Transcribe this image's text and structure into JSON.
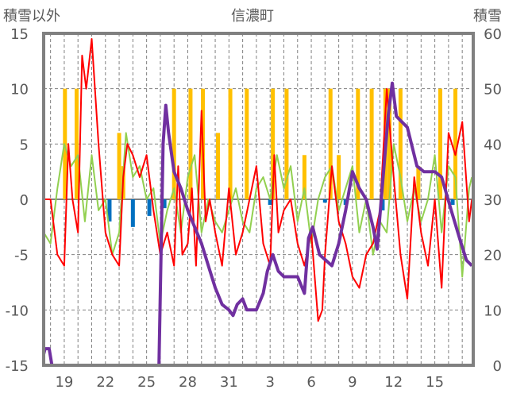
{
  "chart_data": {
    "type": "line",
    "title": "信濃町",
    "ylabel_left": "積雪以外",
    "ylabel_right": "積雪",
    "ylim_left": [
      -15,
      15
    ],
    "ylim_right": [
      0,
      60
    ],
    "yticks_left": [
      "15",
      "10",
      "5",
      "0",
      "-5",
      "-10",
      "-15"
    ],
    "yticks_right": [
      "60",
      "50",
      "40",
      "30",
      "20",
      "10",
      "0"
    ],
    "xlim_day": [
      17.5,
      48.8
    ],
    "xticks": [
      {
        "day": 19,
        "label": "19"
      },
      {
        "day": 22,
        "label": "22"
      },
      {
        "day": 25,
        "label": "25"
      },
      {
        "day": 28,
        "label": "28"
      },
      {
        "day": 31,
        "label": "31"
      },
      {
        "day": 34,
        "label": "3"
      },
      {
        "day": 37,
        "label": "6"
      },
      {
        "day": 40,
        "label": "9"
      },
      {
        "day": 43,
        "label": "12"
      },
      {
        "day": 46,
        "label": "15"
      }
    ],
    "grid": true,
    "colors": {
      "red": "#ff0000",
      "green": "#92d050",
      "yellow": "#ffc000",
      "blue": "#0070c0",
      "purple": "#7030a0",
      "frame": "#808080"
    },
    "series": [
      {
        "name": "snowfall",
        "axis": "left",
        "kind": "bar",
        "color": "#ffc000",
        "points": [
          [
            19.05,
            10
          ],
          [
            19.9,
            10
          ],
          [
            23,
            6
          ],
          [
            23.3,
            3
          ],
          [
            27,
            10
          ],
          [
            28.2,
            10
          ],
          [
            29.1,
            10
          ],
          [
            30.2,
            6
          ],
          [
            31.1,
            10
          ],
          [
            32.3,
            10
          ],
          [
            34.2,
            10
          ],
          [
            35.2,
            10
          ],
          [
            36.5,
            4
          ],
          [
            38.4,
            10
          ],
          [
            39,
            4
          ],
          [
            40.4,
            10
          ],
          [
            41.4,
            10
          ],
          [
            42.4,
            10
          ],
          [
            42.7,
            10
          ],
          [
            43.5,
            10
          ],
          [
            44.8,
            3
          ],
          [
            46.4,
            10
          ],
          [
            47.5,
            10
          ]
        ]
      },
      {
        "name": "negative",
        "axis": "left",
        "kind": "bar",
        "color": "#0070c0",
        "points": [
          [
            22.3,
            -2
          ],
          [
            24,
            -2.5
          ],
          [
            25.2,
            -1.5
          ],
          [
            26.3,
            -0.8
          ],
          [
            34,
            -0.5
          ],
          [
            38,
            -0.3
          ],
          [
            39.5,
            -0.5
          ],
          [
            42.2,
            -1
          ],
          [
            47.3,
            -0.5
          ]
        ]
      },
      {
        "name": "green",
        "axis": "left",
        "kind": "line",
        "color": "#92d050",
        "points": [
          [
            17.5,
            -3
          ],
          [
            18,
            -4
          ],
          [
            18.5,
            1
          ],
          [
            19,
            5
          ],
          [
            19.5,
            3
          ],
          [
            20,
            4
          ],
          [
            20.5,
            -2
          ],
          [
            21,
            4
          ],
          [
            21.5,
            -1
          ],
          [
            22,
            0
          ],
          [
            22.5,
            -5
          ],
          [
            23,
            -3
          ],
          [
            23.5,
            6
          ],
          [
            24,
            2
          ],
          [
            24.5,
            3
          ],
          [
            25,
            0
          ],
          [
            25.5,
            1
          ],
          [
            26,
            -4
          ],
          [
            26.5,
            -1
          ],
          [
            27,
            1
          ],
          [
            27.5,
            -3
          ],
          [
            28,
            2
          ],
          [
            28.5,
            4
          ],
          [
            29,
            -3
          ],
          [
            29.5,
            0
          ],
          [
            30,
            -2
          ],
          [
            30.5,
            -3
          ],
          [
            31,
            -1
          ],
          [
            31.5,
            1
          ],
          [
            32,
            -2
          ],
          [
            32.5,
            -3
          ],
          [
            33,
            1
          ],
          [
            33.5,
            2
          ],
          [
            34,
            0
          ],
          [
            34.5,
            4
          ],
          [
            35,
            1
          ],
          [
            35.5,
            3
          ],
          [
            36,
            -2
          ],
          [
            36.5,
            1
          ],
          [
            37,
            -4
          ],
          [
            37.5,
            0
          ],
          [
            38,
            2
          ],
          [
            38.5,
            3
          ],
          [
            39,
            -1
          ],
          [
            39.5,
            1
          ],
          [
            40,
            3
          ],
          [
            40.5,
            -3
          ],
          [
            41,
            0
          ],
          [
            41.5,
            -5
          ],
          [
            42,
            -2
          ],
          [
            42.5,
            -3
          ],
          [
            43,
            5
          ],
          [
            43.5,
            2
          ],
          [
            44,
            -2
          ],
          [
            44.5,
            1
          ],
          [
            45,
            -2
          ],
          [
            45.5,
            0
          ],
          [
            46,
            4
          ],
          [
            46.5,
            -3
          ],
          [
            47,
            3
          ],
          [
            47.5,
            2
          ],
          [
            48,
            -7
          ],
          [
            48.5,
            1
          ],
          [
            48.7,
            2
          ]
        ]
      },
      {
        "name": "red",
        "axis": "left",
        "kind": "line",
        "color": "#ff0000",
        "points": [
          [
            17.5,
            0
          ],
          [
            18,
            0
          ],
          [
            18.5,
            -5
          ],
          [
            19,
            -6
          ],
          [
            19.3,
            5
          ],
          [
            19.6,
            0
          ],
          [
            20,
            -3
          ],
          [
            20.3,
            13
          ],
          [
            20.6,
            10
          ],
          [
            21,
            14.5
          ],
          [
            21.5,
            5
          ],
          [
            22,
            -3
          ],
          [
            22.5,
            -5
          ],
          [
            23,
            -6
          ],
          [
            23.3,
            2
          ],
          [
            23.6,
            5
          ],
          [
            24,
            4
          ],
          [
            24.5,
            2
          ],
          [
            25,
            4
          ],
          [
            25.5,
            -1
          ],
          [
            26,
            -5
          ],
          [
            26.5,
            -3
          ],
          [
            27,
            -6
          ],
          [
            27.3,
            3
          ],
          [
            27.6,
            -5
          ],
          [
            28,
            -4
          ],
          [
            28.3,
            1
          ],
          [
            28.6,
            -6
          ],
          [
            29,
            8
          ],
          [
            29.3,
            -2
          ],
          [
            29.6,
            0
          ],
          [
            30,
            -3
          ],
          [
            30.5,
            -6
          ],
          [
            31,
            1
          ],
          [
            31.5,
            -5
          ],
          [
            32,
            -3
          ],
          [
            32.5,
            0
          ],
          [
            33,
            3
          ],
          [
            33.5,
            -4
          ],
          [
            34,
            -6
          ],
          [
            34.3,
            4
          ],
          [
            34.6,
            -3
          ],
          [
            35,
            -1
          ],
          [
            35.5,
            0
          ],
          [
            36,
            -4
          ],
          [
            36.5,
            -6
          ],
          [
            37,
            -3
          ],
          [
            37.5,
            -11
          ],
          [
            37.8,
            -10
          ],
          [
            38,
            -5
          ],
          [
            38.5,
            3
          ],
          [
            39,
            -2
          ],
          [
            39.5,
            -4
          ],
          [
            40,
            -7
          ],
          [
            40.5,
            -8
          ],
          [
            41,
            -5
          ],
          [
            41.5,
            -4
          ],
          [
            42,
            -1
          ],
          [
            42.5,
            10
          ],
          [
            43,
            2
          ],
          [
            43.5,
            -5
          ],
          [
            44,
            -9
          ],
          [
            44.5,
            2
          ],
          [
            45,
            -3
          ],
          [
            45.5,
            -6
          ],
          [
            46,
            0
          ],
          [
            46.5,
            -8
          ],
          [
            47,
            6
          ],
          [
            47.5,
            4
          ],
          [
            48,
            7
          ],
          [
            48.5,
            -2
          ],
          [
            48.7,
            0
          ]
        ]
      },
      {
        "name": "snow_depth",
        "axis": "right",
        "kind": "line",
        "color": "#7030a0",
        "points": [
          [
            17.5,
            2
          ],
          [
            17.6,
            3
          ],
          [
            17.9,
            3
          ],
          [
            18.1,
            0
          ],
          [
            25.9,
            0
          ],
          [
            26.2,
            40
          ],
          [
            26.4,
            47
          ],
          [
            26.6,
            42
          ],
          [
            27,
            35
          ],
          [
            27.5,
            32
          ],
          [
            28,
            28
          ],
          [
            28.5,
            25
          ],
          [
            29,
            22
          ],
          [
            29.5,
            18
          ],
          [
            30,
            14
          ],
          [
            30.5,
            11
          ],
          [
            31,
            10
          ],
          [
            31.3,
            9
          ],
          [
            31.6,
            11
          ],
          [
            32,
            12
          ],
          [
            32.3,
            10
          ],
          [
            33,
            10
          ],
          [
            33.5,
            13
          ],
          [
            33.8,
            17
          ],
          [
            34.2,
            20
          ],
          [
            34.6,
            17
          ],
          [
            35,
            16
          ],
          [
            36,
            16
          ],
          [
            36.5,
            13
          ],
          [
            36.8,
            23
          ],
          [
            37.1,
            25
          ],
          [
            37.6,
            20
          ],
          [
            38.5,
            18
          ],
          [
            39,
            22
          ],
          [
            39.5,
            28
          ],
          [
            40,
            35
          ],
          [
            40.5,
            32
          ],
          [
            41,
            30
          ],
          [
            41.5,
            25
          ],
          [
            41.8,
            21
          ],
          [
            42.6,
            45
          ],
          [
            42.9,
            51
          ],
          [
            43.2,
            45
          ],
          [
            44,
            43
          ],
          [
            44.7,
            36
          ],
          [
            45.2,
            35
          ],
          [
            46,
            35
          ],
          [
            46.5,
            34
          ],
          [
            47.2,
            28
          ],
          [
            47.8,
            23
          ],
          [
            48.3,
            19
          ],
          [
            48.7,
            18
          ]
        ]
      }
    ]
  }
}
